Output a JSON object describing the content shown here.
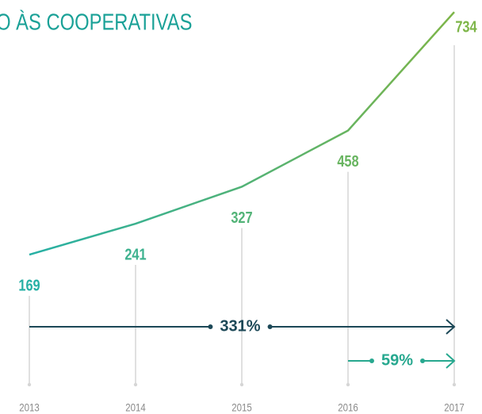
{
  "chart_data": {
    "type": "line",
    "title": "O ÀS COOPERATIVAS",
    "categories": [
      "2013",
      "2014",
      "2015",
      "2016",
      "2017"
    ],
    "series": [
      {
        "values": [
          169,
          241,
          327,
          458,
          734
        ],
        "color": [
          "#26b0a5",
          "#7db548"
        ]
      }
    ],
    "ylim": [
      0,
      750
    ],
    "annotations": [
      "331%",
      "59%"
    ],
    "annotation_colors": [
      "#1c4857",
      "#27a88f"
    ]
  }
}
